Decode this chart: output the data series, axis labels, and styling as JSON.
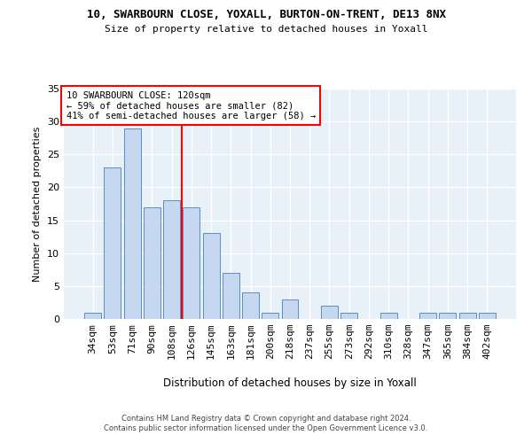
{
  "title": "10, SWARBOURN CLOSE, YOXALL, BURTON-ON-TRENT, DE13 8NX",
  "subtitle": "Size of property relative to detached houses in Yoxall",
  "xlabel": "Distribution of detached houses by size in Yoxall",
  "ylabel": "Number of detached properties",
  "categories": [
    "34sqm",
    "53sqm",
    "71sqm",
    "90sqm",
    "108sqm",
    "126sqm",
    "145sqm",
    "163sqm",
    "181sqm",
    "200sqm",
    "218sqm",
    "237sqm",
    "255sqm",
    "273sqm",
    "292sqm",
    "310sqm",
    "328sqm",
    "347sqm",
    "365sqm",
    "384sqm",
    "402sqm"
  ],
  "values": [
    1,
    23,
    29,
    17,
    18,
    17,
    13,
    7,
    4,
    1,
    3,
    0,
    2,
    1,
    0,
    1,
    0,
    1,
    1,
    1,
    1
  ],
  "bar_color": "#c5d8f0",
  "bar_edge_color": "#5b8ec4",
  "vline_x_index": 4.5,
  "vline_color": "red",
  "annotation_text": "10 SWARBOURN CLOSE: 120sqm\n← 59% of detached houses are smaller (82)\n41% of semi-detached houses are larger (58) →",
  "annotation_box_color": "white",
  "annotation_box_edgecolor": "red",
  "ylim": [
    0,
    35
  ],
  "yticks": [
    0,
    5,
    10,
    15,
    20,
    25,
    30,
    35
  ],
  "background_color": "#e8f0f8",
  "grid_color": "white",
  "footer": "Contains HM Land Registry data © Crown copyright and database right 2024.\nContains public sector information licensed under the Open Government Licence v3.0."
}
